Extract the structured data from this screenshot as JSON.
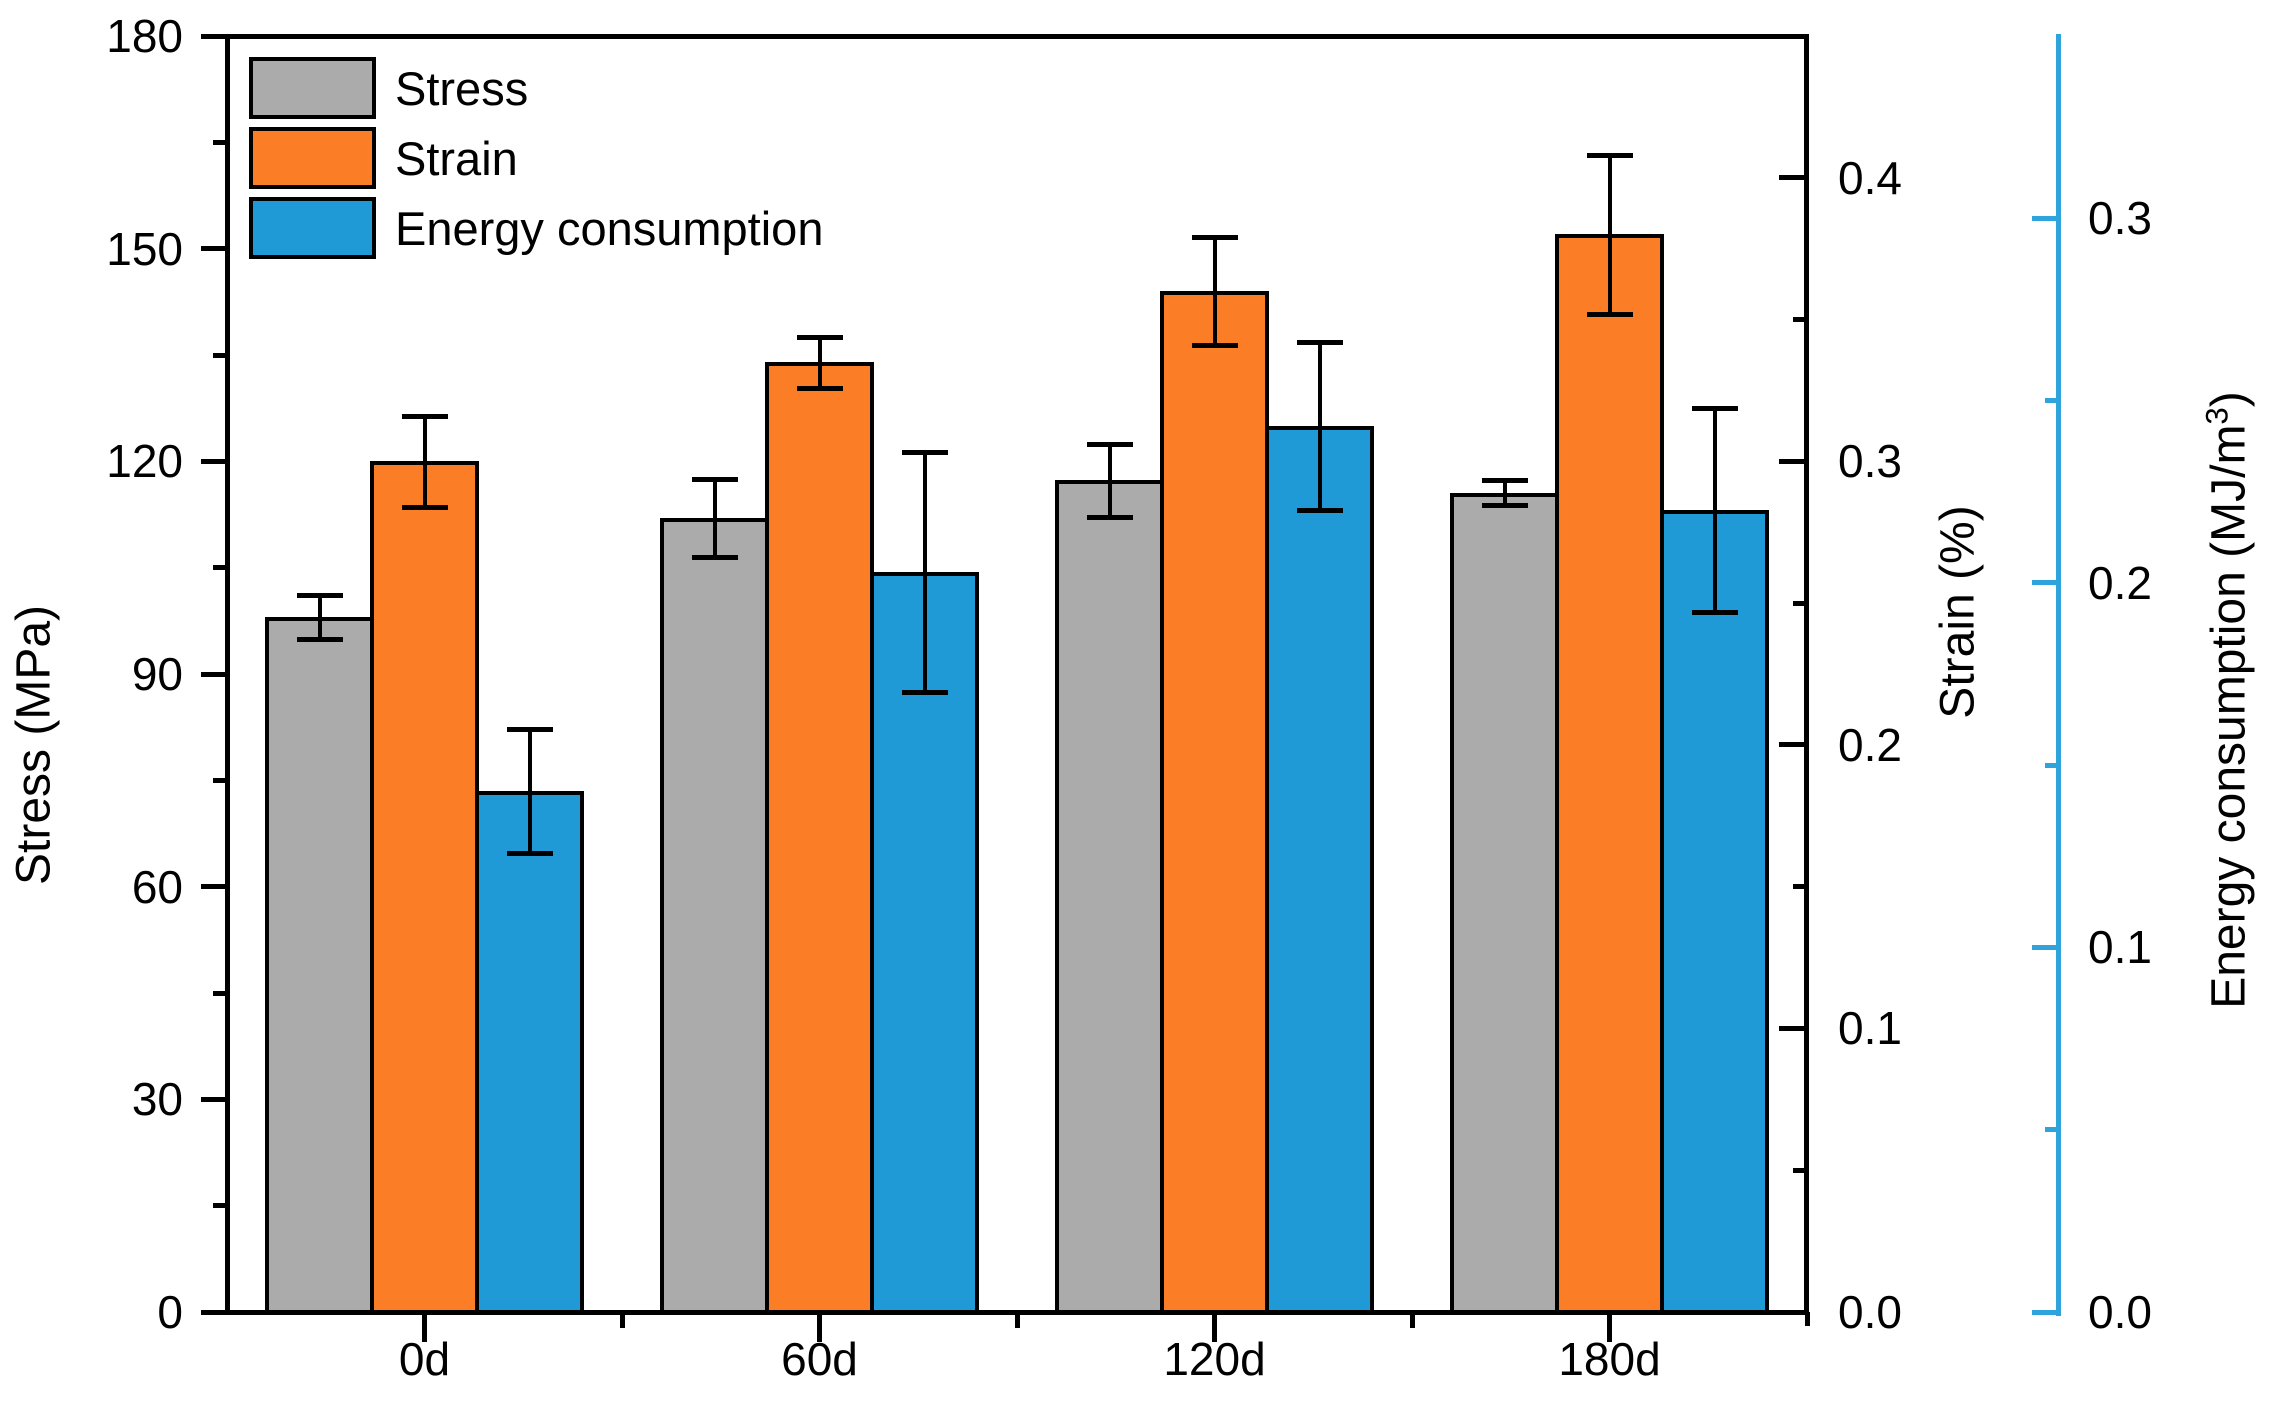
{
  "chart_data": {
    "type": "bar",
    "title": "",
    "categories": [
      "0d",
      "60d",
      "120d",
      "180d"
    ],
    "series": [
      {
        "name": "Stress",
        "axis": "left",
        "unit": "MPa",
        "color": "#ABABAB",
        "values": [
          98,
          112,
          117.3,
          115.6
        ],
        "errors": [
          3.1,
          5.5,
          5.2,
          1.7
        ]
      },
      {
        "name": "Strain",
        "axis": "right1",
        "unit": "%",
        "color": "#FB7D25",
        "values": [
          0.3,
          0.335,
          0.36,
          0.38
        ],
        "errors": [
          0.016,
          0.009,
          0.019,
          0.028
        ]
      },
      {
        "name": "Energy consumption",
        "axis": "right2",
        "unit": "MJ/m³",
        "color": "#209AD6",
        "values": [
          0.143,
          0.203,
          0.243,
          0.22
        ],
        "errors": [
          0.017,
          0.033,
          0.023,
          0.028
        ]
      }
    ],
    "axes": {
      "left": {
        "title": "Stress (MPa)",
        "range": [
          0,
          180
        ],
        "major_ticks": [
          0,
          30,
          60,
          90,
          120,
          150,
          180
        ],
        "minor_ticks": [
          15,
          45,
          75,
          105,
          135,
          165
        ],
        "tick_labels": [
          "0",
          "30",
          "60",
          "90",
          "120",
          "150",
          "180"
        ],
        "color": "#000000"
      },
      "right1": {
        "title": "Strain (%)",
        "range": [
          0,
          0.45
        ],
        "major_ticks": [
          0,
          0.1,
          0.2,
          0.3,
          0.4
        ],
        "minor_ticks": [
          0.05,
          0.15,
          0.25,
          0.35
        ],
        "tick_labels": [
          "0.0",
          "0.1",
          "0.2",
          "0.3",
          "0.4"
        ],
        "color": "#000000"
      },
      "right2": {
        "title": "Energy consumption (MJ/m³)",
        "range": [
          0,
          0.35
        ],
        "major_ticks": [
          0,
          0.1,
          0.2,
          0.3
        ],
        "minor_ticks": [
          0.05,
          0.15,
          0.25
        ],
        "tick_labels": [
          "0.0",
          "0.1",
          "0.2",
          "0.3"
        ],
        "color": "#2FA3DC"
      },
      "x": {
        "tick_labels": [
          "0d",
          "60d",
          "120d",
          "180d"
        ]
      }
    },
    "legend": {
      "position": "top-left",
      "entries": [
        "Stress",
        "Strain",
        "Energy consumption"
      ]
    },
    "grid": false,
    "background": "#ffffff"
  }
}
